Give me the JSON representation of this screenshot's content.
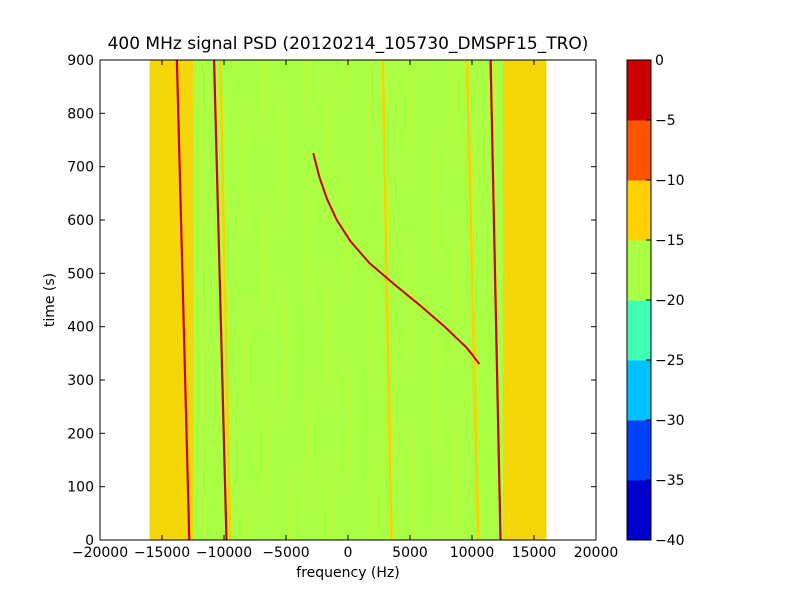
{
  "chart_data": {
    "type": "heatmap",
    "title": "400 MHz signal PSD (20120214_105730_DMSPF15_TRO)",
    "xlabel": "frequency (Hz)",
    "ylabel": "time (s)",
    "xlim": [
      -20000,
      20000
    ],
    "ylim": [
      0,
      900
    ],
    "xticks": [
      -20000,
      -15000,
      -10000,
      -5000,
      0,
      5000,
      10000,
      15000,
      20000
    ],
    "xtick_labels": [
      "−20000",
      "−15000",
      "−10000",
      "−5000",
      "0",
      "5000",
      "10000",
      "15000",
      "20000"
    ],
    "yticks": [
      0,
      100,
      200,
      300,
      400,
      500,
      600,
      700,
      800,
      900
    ],
    "ytick_labels": [
      "0",
      "100",
      "200",
      "300",
      "400",
      "500",
      "600",
      "700",
      "800",
      "900"
    ],
    "data_extent_hz": [
      -16000,
      16000
    ],
    "colorbar": {
      "levels": [
        -40,
        -35,
        -30,
        -25,
        -20,
        -15,
        -10,
        -5,
        0
      ],
      "tick_labels": [
        "−40",
        "−35",
        "−30",
        "−25",
        "−20",
        "−15",
        "−10",
        "−5",
        "0"
      ],
      "colors": [
        "#0000cc",
        "#0040ff",
        "#00c0ff",
        "#40ffb0",
        "#aaff44",
        "#ffd000",
        "#ff5500",
        "#cc0000"
      ]
    },
    "background_level_range": [
      -20,
      -15
    ],
    "edge_band_level_range": [
      -15,
      -10
    ],
    "edge_bands_hz": [
      [
        -16000,
        -12500
      ],
      [
        12500,
        16000
      ]
    ],
    "vertical_lines": [
      {
        "name": "line-a",
        "level_range": [
          -5,
          0
        ],
        "freq_hz_at_t0": -12800,
        "freq_hz_at_t900": -13800
      },
      {
        "name": "line-b",
        "level_range": [
          -5,
          0
        ],
        "freq_hz_at_t0": -9800,
        "freq_hz_at_t900": -10800
      },
      {
        "name": "line-c",
        "level_range": [
          -15,
          -10
        ],
        "freq_hz_at_t0": -9500,
        "freq_hz_at_t900": -10300
      },
      {
        "name": "line-d",
        "level_range": [
          -15,
          -10
        ],
        "freq_hz_at_t0": 3500,
        "freq_hz_at_t900": 2800
      },
      {
        "name": "line-e",
        "level_range": [
          -15,
          -10
        ],
        "freq_hz_at_t0": 10500,
        "freq_hz_at_t900": 9600
      },
      {
        "name": "line-f",
        "level_range": [
          -5,
          0
        ],
        "freq_hz_at_t0": 12300,
        "freq_hz_at_t900": 11500
      }
    ],
    "doppler_curve": {
      "level_range": [
        -5,
        0
      ],
      "points": [
        {
          "t": 330,
          "f": 10600
        },
        {
          "t": 360,
          "f": 9600
        },
        {
          "t": 400,
          "f": 7800
        },
        {
          "t": 440,
          "f": 5800
        },
        {
          "t": 480,
          "f": 3700
        },
        {
          "t": 520,
          "f": 1700
        },
        {
          "t": 560,
          "f": 200
        },
        {
          "t": 600,
          "f": -900
        },
        {
          "t": 640,
          "f": -1700
        },
        {
          "t": 680,
          "f": -2300
        },
        {
          "t": 725,
          "f": -2800
        }
      ]
    }
  }
}
